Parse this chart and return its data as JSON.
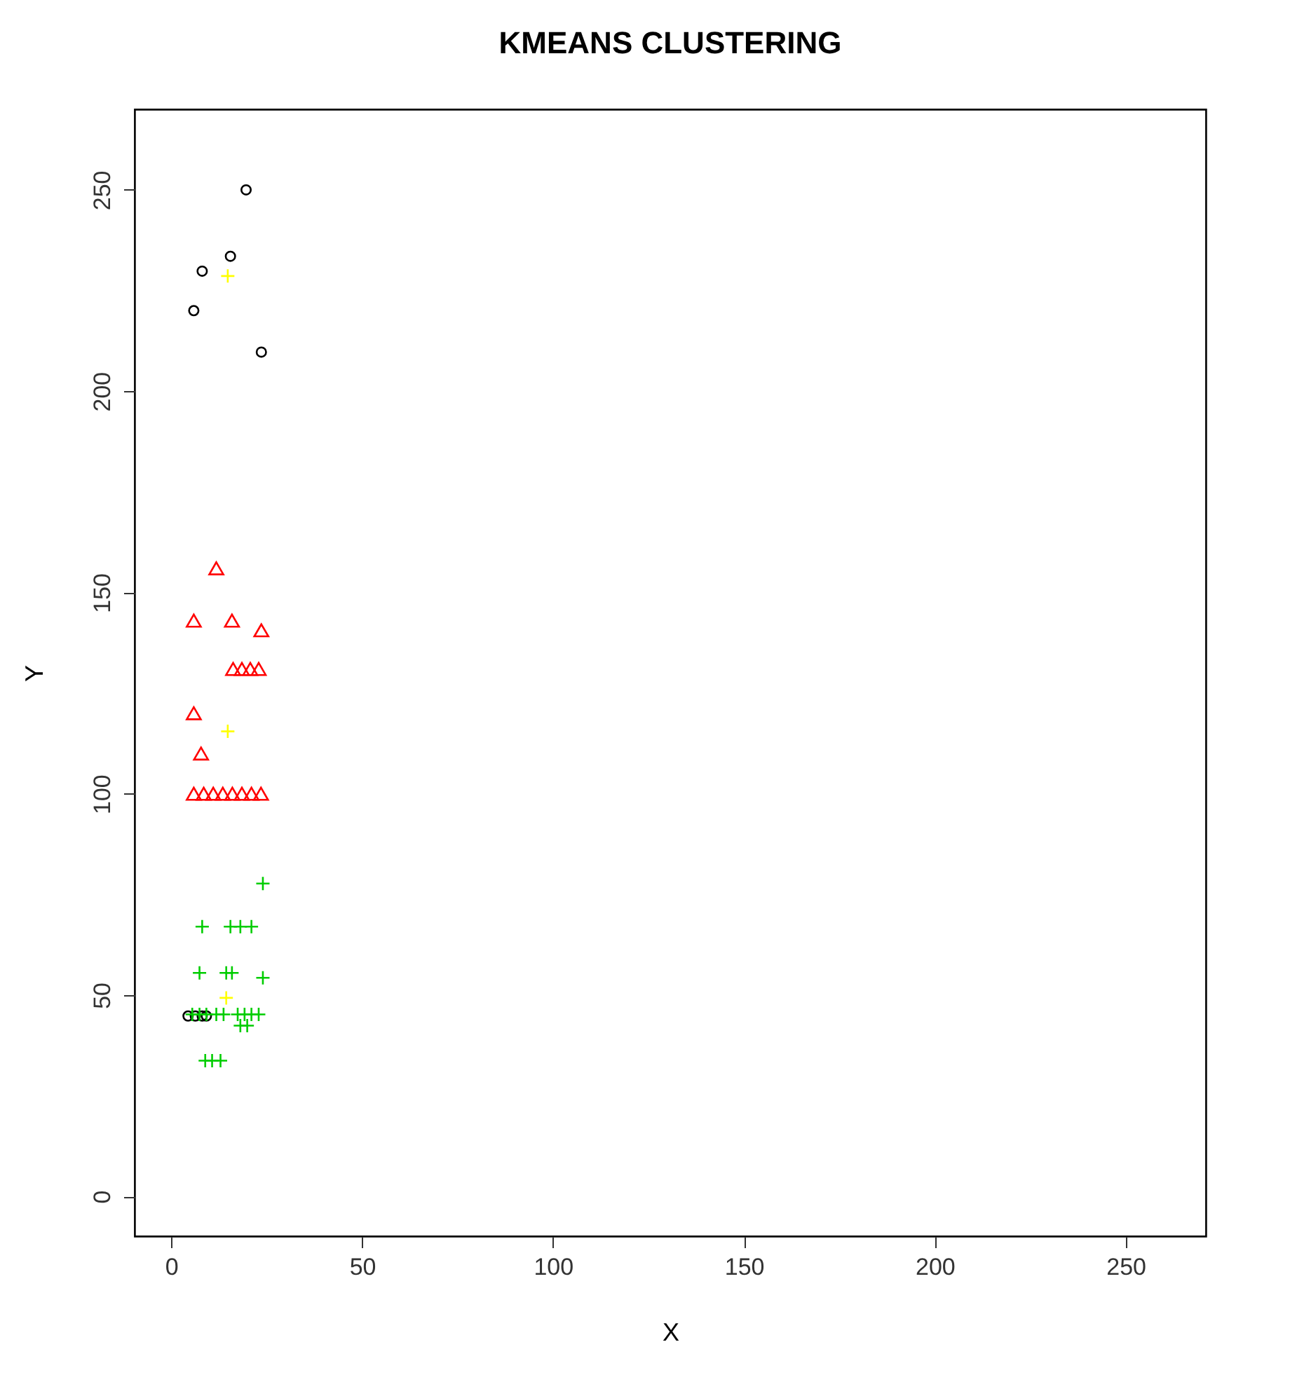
{
  "chart_data": {
    "type": "scatter",
    "title": "KMEANS CLUSTERING",
    "xlabel": "X",
    "ylabel": "Y",
    "xlim": [
      -9.6,
      271
    ],
    "ylim": [
      -9.9,
      270
    ],
    "xticks": [
      0,
      50,
      100,
      150,
      200,
      250
    ],
    "yticks": [
      0,
      50,
      100,
      150,
      200,
      250
    ],
    "grid": false,
    "series": [
      {
        "color": "#000000",
        "marker": "circle",
        "x": [
          19.6,
          15.5,
          8.1,
          5.9,
          23.6,
          4.4,
          6.3,
          8.1,
          9.2
        ],
        "values": [
          250,
          233.5,
          229.8,
          220,
          209.7,
          44.8,
          44.8,
          44.8,
          44.8
        ]
      },
      {
        "color": "#ff0000",
        "marker": "triangle",
        "x": [
          11.8,
          5.9,
          15.9,
          23.6,
          16.2,
          18.5,
          20.7,
          22.9,
          5.9,
          7.8,
          5.9,
          8.5,
          11,
          13.5,
          16,
          18.5,
          21,
          23.5
        ],
        "values": [
          156,
          143,
          143,
          140.6,
          131,
          131,
          131,
          131,
          120,
          110,
          100,
          100,
          100,
          100,
          100,
          100,
          100,
          100
        ]
      },
      {
        "color": "#00cd00",
        "marker": "cross",
        "x": [
          24,
          8.1,
          15.5,
          18.1,
          21,
          7.4,
          14.4,
          15.9,
          24,
          5.5,
          7.4,
          9.2,
          11.8,
          13.7,
          17.4,
          19.2,
          21,
          22.9,
          18.1,
          19.9,
          8.9,
          10.7,
          12.9
        ],
        "values": [
          77.7,
          67,
          67,
          67,
          67,
          55.5,
          55.5,
          55.5,
          54.3,
          45.2,
          45.2,
          45.2,
          45.2,
          45.2,
          45.2,
          45.2,
          45.2,
          45.2,
          42.4,
          42.4,
          33.7,
          33.7,
          33.7
        ]
      },
      {
        "color": "#ffff00",
        "marker": "cross",
        "x": [
          14.8,
          14.8,
          14.4
        ],
        "values": [
          228.6,
          115.5,
          49.3
        ]
      }
    ]
  }
}
